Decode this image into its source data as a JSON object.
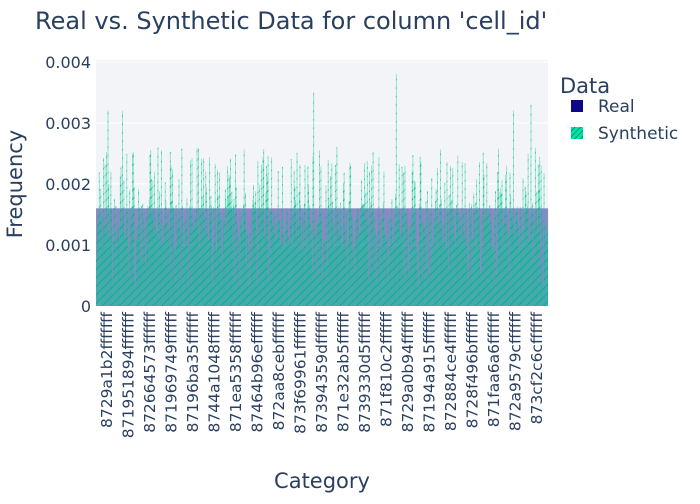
{
  "chart_data": {
    "type": "bar",
    "title": "Real vs. Synthetic Data for column 'cell_id'",
    "xlabel": "Category",
    "ylabel": "Frequency",
    "ylim": [
      0,
      0.00403
    ],
    "yticks": [
      {
        "value": 0,
        "label": "0"
      },
      {
        "value": 0.001,
        "label": "0.001"
      },
      {
        "value": 0.002,
        "label": "0.002"
      },
      {
        "value": 0.003,
        "label": "0.003"
      },
      {
        "value": 0.004,
        "label": "0.004"
      }
    ],
    "xtick_labels": [
      "8729a1b2fffffff",
      "87195189 4fffffff",
      "872664573ffffff",
      "871969749ffffff",
      "87196ba35ffffff",
      "8744a1048ffffff",
      "871ea5358ffffff",
      "87464b96effffff",
      "872aa8cebffffff",
      "873f6996 1fffffff",
      "8739435 9dffffff",
      "871e32ab5ffffff",
      "8739330d5ffffff",
      "871f810c2ffffff",
      "8729a0b94ffffff",
      "87194a915ffffff",
      "872884ce4ffffff",
      "8728f496bffffff",
      "871faa6a6ffffff",
      "872a9579cffffff",
      "873cf2c6cffffff"
    ],
    "category_count": 624,
    "legend_title": "Data",
    "legend_position": "top-right",
    "grid": true,
    "series": [
      {
        "name": "Real",
        "color": "#0d0887",
        "pattern": "none",
        "description": "uniform frequency for every category",
        "uniform_value": 0.0016
      },
      {
        "name": "Synthetic",
        "color": "#00cc96",
        "pattern": "diagonal",
        "description": "varies per category, mostly 0.0008-0.0026",
        "typical_range": [
          0.0008,
          0.0026
        ],
        "peaks": [
          {
            "index": 16,
            "value": 0.0032
          },
          {
            "index": 36,
            "value": 0.0032
          },
          {
            "index": 300,
            "value": 0.0035
          },
          {
            "index": 414,
            "value": 0.0038
          },
          {
            "index": 576,
            "value": 0.0032
          },
          {
            "index": 600,
            "value": 0.0033
          }
        ]
      }
    ]
  }
}
